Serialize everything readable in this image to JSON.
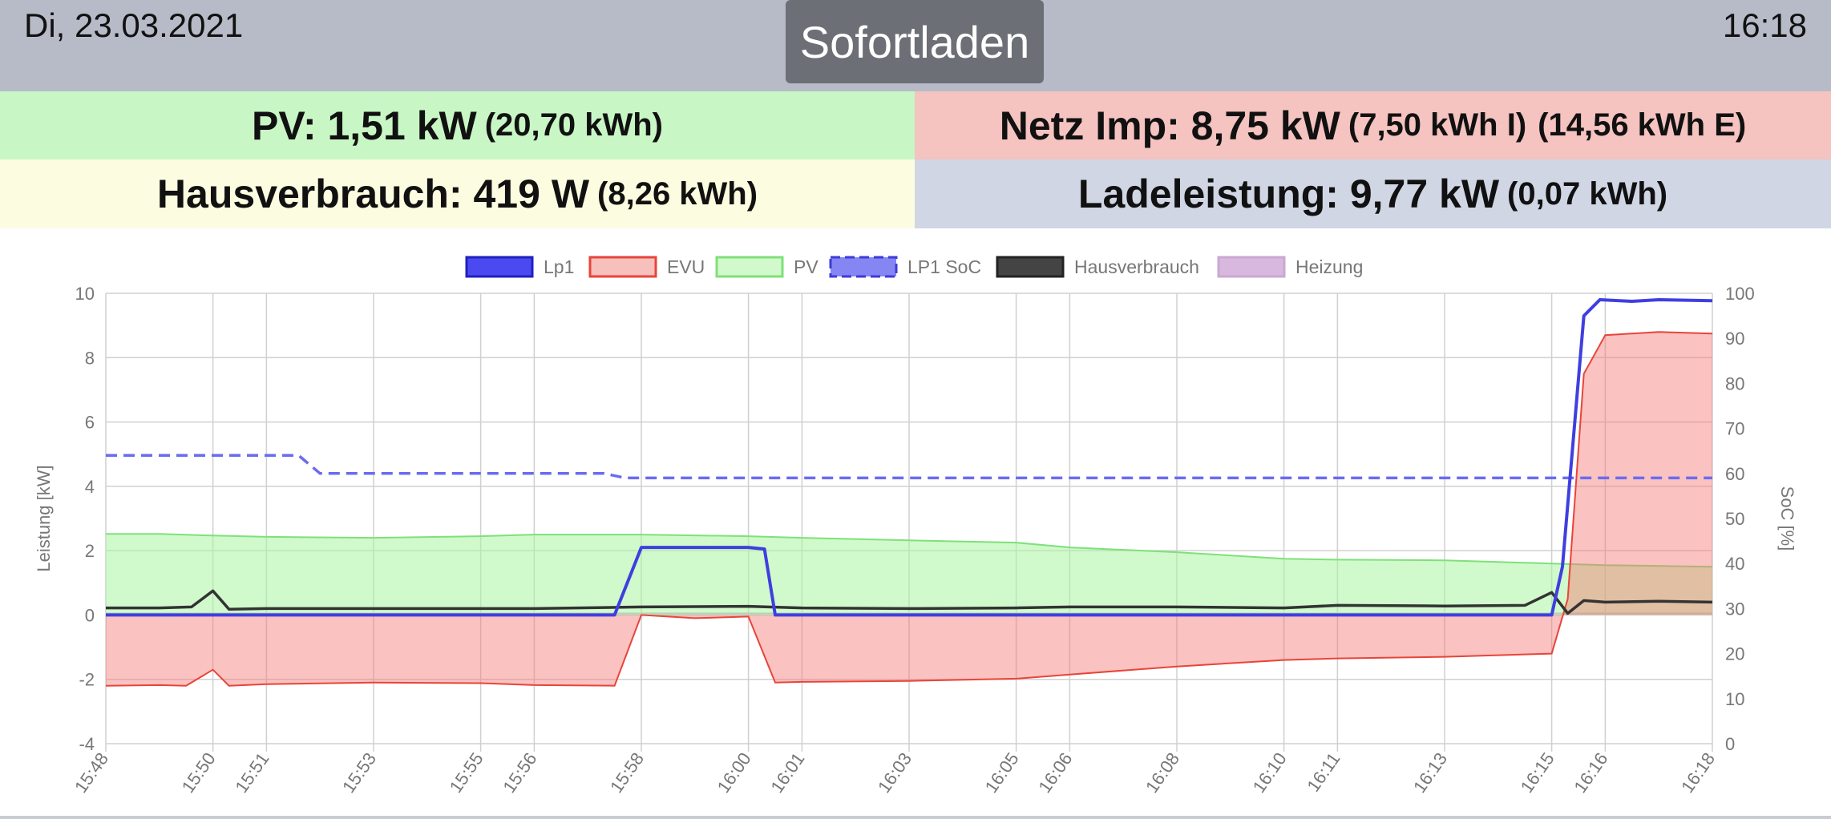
{
  "header": {
    "date": "Di, 23.03.2021",
    "mode_button": "Sofortladen",
    "time": "16:18"
  },
  "tiles": {
    "pv": {
      "main": "PV: 1,51 kW",
      "sub": "(20,70 kWh)",
      "color": "#c8f7c5"
    },
    "netz": {
      "main": "Netz Imp: 8,75 kW",
      "sub": "(7,50 kWh I)",
      "sub2": "(14,56 kWh E)",
      "color": "#f5c3c0"
    },
    "haus": {
      "main": "Hausverbrauch: 419 W",
      "sub": "(8,26 kWh)",
      "color": "#fcfce0"
    },
    "lade": {
      "main": "Ladeleistung: 9,77 kW",
      "sub": "(0,07 kWh)",
      "color": "#d0d6e4"
    }
  },
  "chart_data": {
    "type": "line",
    "ylabel": "Leistung [kW]",
    "y2label": "SoC [%]",
    "ylim": [
      -4,
      10
    ],
    "y2lim": [
      0,
      100
    ],
    "yticks": [
      -4,
      -2,
      0,
      2,
      4,
      6,
      8,
      10
    ],
    "y2ticks": [
      0,
      10,
      20,
      30,
      40,
      50,
      60,
      70,
      80,
      90,
      100
    ],
    "xlim": [
      "15:48",
      "16:18"
    ],
    "xticks": [
      "15:48",
      "15:50",
      "15:51",
      "15:53",
      "15:55",
      "15:56",
      "15:58",
      "16:00",
      "16:01",
      "16:03",
      "16:05",
      "16:06",
      "16:08",
      "16:10",
      "16:11",
      "16:13",
      "16:15",
      "16:16",
      "16:18"
    ],
    "grid": true,
    "legend_position": "top",
    "series": [
      {
        "name": "Lp1",
        "axis": "left",
        "kind": "line",
        "color": "#3f3fe0",
        "points": [
          [
            "15:48",
            0
          ],
          [
            "15:57.5",
            0
          ],
          [
            "15:58",
            2.1
          ],
          [
            "15:59",
            2.1
          ],
          [
            "16:00",
            2.1
          ],
          [
            "16:00.3",
            2.05
          ],
          [
            "16:00.5",
            0
          ],
          [
            "16:15",
            0
          ],
          [
            "16:15.2",
            1.5
          ],
          [
            "16:15.6",
            9.3
          ],
          [
            "16:15.9",
            9.8
          ],
          [
            "16:16.5",
            9.75
          ],
          [
            "16:17",
            9.8
          ],
          [
            "16:18",
            9.77
          ]
        ]
      },
      {
        "name": "EVU",
        "axis": "left",
        "kind": "area",
        "color": "#e8443a",
        "fill": "rgba(243,120,115,0.45)",
        "points": [
          [
            "15:48",
            -2.2
          ],
          [
            "15:49",
            -2.18
          ],
          [
            "15:49.5",
            -2.2
          ],
          [
            "15:50",
            -1.7
          ],
          [
            "15:50.3",
            -2.2
          ],
          [
            "15:51",
            -2.15
          ],
          [
            "15:53",
            -2.1
          ],
          [
            "15:55",
            -2.12
          ],
          [
            "15:56",
            -2.18
          ],
          [
            "15:57.5",
            -2.2
          ],
          [
            "15:58",
            0
          ],
          [
            "15:59",
            -0.1
          ],
          [
            "16:00",
            -0.05
          ],
          [
            "16:00.5",
            -2.1
          ],
          [
            "16:01",
            -2.08
          ],
          [
            "16:03",
            -2.05
          ],
          [
            "16:05",
            -1.98
          ],
          [
            "16:06",
            -1.85
          ],
          [
            "16:08",
            -1.6
          ],
          [
            "16:10",
            -1.4
          ],
          [
            "16:11",
            -1.35
          ],
          [
            "16:13",
            -1.3
          ],
          [
            "16:14",
            -1.25
          ],
          [
            "16:15",
            -1.2
          ],
          [
            "16:15.3",
            0.5
          ],
          [
            "16:15.6",
            7.5
          ],
          [
            "16:16",
            8.7
          ],
          [
            "16:16.5",
            8.75
          ],
          [
            "16:17",
            8.8
          ],
          [
            "16:18",
            8.75
          ]
        ]
      },
      {
        "name": "PV",
        "axis": "left",
        "kind": "area",
        "color": "#7fe07a",
        "fill": "rgba(170,245,160,0.55)",
        "points": [
          [
            "15:48",
            2.52
          ],
          [
            "15:49",
            2.52
          ],
          [
            "15:50",
            2.47
          ],
          [
            "15:51",
            2.43
          ],
          [
            "15:53",
            2.4
          ],
          [
            "15:55",
            2.45
          ],
          [
            "15:56",
            2.5
          ],
          [
            "15:58",
            2.5
          ],
          [
            "16:00",
            2.45
          ],
          [
            "16:01",
            2.4
          ],
          [
            "16:03",
            2.32
          ],
          [
            "16:05",
            2.25
          ],
          [
            "16:06",
            2.1
          ],
          [
            "16:08",
            1.95
          ],
          [
            "16:10",
            1.75
          ],
          [
            "16:11",
            1.72
          ],
          [
            "16:13",
            1.7
          ],
          [
            "16:15",
            1.6
          ],
          [
            "16:16",
            1.55
          ],
          [
            "16:18",
            1.5
          ]
        ]
      },
      {
        "name": "LP1 SoC",
        "axis": "right",
        "kind": "dashed",
        "color": "#6b6bf0",
        "points": [
          [
            "15:48",
            64
          ],
          [
            "15:51.6",
            64
          ],
          [
            "15:52",
            60
          ],
          [
            "15:57.3",
            60
          ],
          [
            "15:57.7",
            59
          ],
          [
            "16:18",
            59
          ]
        ]
      },
      {
        "name": "Hausverbrauch",
        "axis": "left",
        "kind": "line",
        "color": "#333333",
        "points": [
          [
            "15:48",
            0.22
          ],
          [
            "15:49",
            0.22
          ],
          [
            "15:49.6",
            0.25
          ],
          [
            "15:50",
            0.75
          ],
          [
            "15:50.3",
            0.18
          ],
          [
            "15:51",
            0.2
          ],
          [
            "15:53",
            0.2
          ],
          [
            "15:55",
            0.2
          ],
          [
            "15:56",
            0.2
          ],
          [
            "15:58",
            0.25
          ],
          [
            "16:00",
            0.27
          ],
          [
            "16:01",
            0.22
          ],
          [
            "16:03",
            0.2
          ],
          [
            "16:05",
            0.22
          ],
          [
            "16:06",
            0.25
          ],
          [
            "16:08",
            0.25
          ],
          [
            "16:10",
            0.22
          ],
          [
            "16:11",
            0.3
          ],
          [
            "16:13",
            0.28
          ],
          [
            "16:14.5",
            0.3
          ],
          [
            "16:15",
            0.7
          ],
          [
            "16:15.3",
            0.05
          ],
          [
            "16:15.6",
            0.45
          ],
          [
            "16:16",
            0.4
          ],
          [
            "16:17",
            0.43
          ],
          [
            "16:18",
            0.4
          ]
        ]
      },
      {
        "name": "Heizung",
        "axis": "left",
        "kind": "area",
        "color": "#c9a8d4",
        "fill": "rgba(201,168,212,0.45)",
        "points": [
          [
            "15:48",
            0.05
          ],
          [
            "16:18",
            0.05
          ]
        ]
      }
    ]
  }
}
